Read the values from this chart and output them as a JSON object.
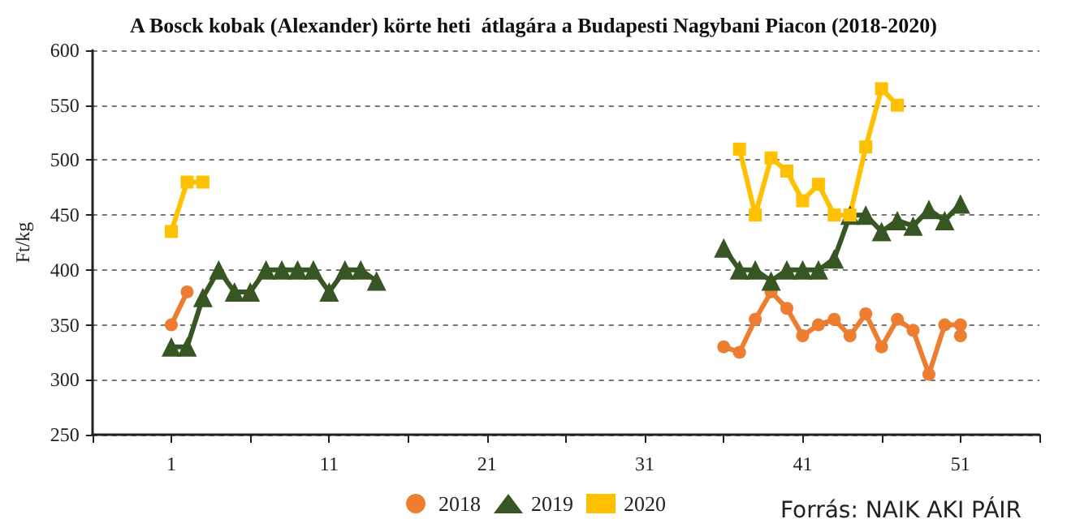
{
  "chart_data": {
    "type": "line",
    "title": "A Bosck kobak (Alexander) körte heti  átlagára a Budapesti Nagybani Piacon (2018-2020)",
    "ylabel": "Ft/kg",
    "annotations": [
      "Forrás: NAIK AKI PÁIR"
    ],
    "series": [
      {
        "name": "2018",
        "color": "#ed7d31",
        "marker": "circle",
        "x": [
          1,
          2,
          3,
          36,
          37,
          38,
          39,
          40,
          41,
          42,
          43,
          44,
          45,
          46,
          47,
          48,
          49,
          50,
          51,
          51
        ],
        "values": [
          350,
          380,
          null,
          330,
          325,
          355,
          380,
          365,
          340,
          350,
          355,
          340,
          360,
          330,
          355,
          345,
          305,
          350,
          350,
          340
        ]
      },
      {
        "name": "2019",
        "color": "#375623",
        "marker": "triangle",
        "x": [
          1,
          2,
          3,
          4,
          5,
          6,
          7,
          8,
          9,
          10,
          11,
          12,
          13,
          14,
          15,
          36,
          37,
          38,
          39,
          40,
          41,
          42,
          43,
          44,
          45,
          46,
          47,
          48,
          49,
          50,
          51
        ],
        "values": [
          330,
          330,
          375,
          400,
          380,
          380,
          400,
          400,
          400,
          400,
          380,
          400,
          400,
          390,
          null,
          420,
          400,
          400,
          390,
          400,
          400,
          400,
          410,
          450,
          450,
          435,
          445,
          440,
          455,
          445,
          460
        ]
      },
      {
        "name": "2020",
        "color": "#ffc000",
        "marker": "square",
        "x": [
          1,
          2,
          3,
          4,
          37,
          38,
          39,
          40,
          41,
          42,
          43,
          44,
          45,
          46,
          47
        ],
        "values": [
          435,
          480,
          480,
          null,
          510,
          450,
          502,
          490,
          463,
          478,
          450,
          450,
          512,
          565,
          550
        ]
      }
    ],
    "xlim": [
      -4,
      56
    ],
    "xticks": [
      {
        "value": -4,
        "label": null
      },
      {
        "value": 1,
        "label": "1"
      },
      {
        "value": 6,
        "label": null
      },
      {
        "value": 11,
        "label": "11"
      },
      {
        "value": 16,
        "label": null
      },
      {
        "value": 21,
        "label": "21"
      },
      {
        "value": 26,
        "label": null
      },
      {
        "value": 31,
        "label": "31"
      },
      {
        "value": 36,
        "label": null
      },
      {
        "value": 41,
        "label": "41"
      },
      {
        "value": 46,
        "label": null
      },
      {
        "value": 51,
        "label": "51"
      },
      {
        "value": 56,
        "label": null
      }
    ],
    "ylim": [
      250,
      600
    ],
    "yticks": [
      250,
      300,
      350,
      400,
      450,
      500,
      550,
      600
    ],
    "grid": "y",
    "legend": "bottom",
    "line_style": "solid"
  }
}
